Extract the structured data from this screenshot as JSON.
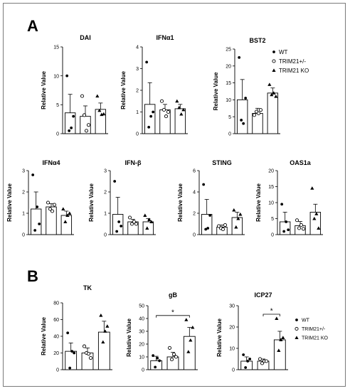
{
  "panels": [
    {
      "label": "A"
    },
    {
      "label": "B"
    }
  ],
  "legend": {
    "wt": "WT",
    "het": "TRIM21+/-",
    "ko": "TRIM21 KO"
  },
  "chart_data": [
    {
      "type": "bar",
      "panel": "A",
      "title": "DAI",
      "ylabel": "Relative Value",
      "ylim": [
        0,
        15
      ],
      "yticks": [
        "0",
        "5",
        "10",
        "15"
      ],
      "categories": [
        "WT",
        "TRIM21+/-",
        "TRIM21 KO"
      ],
      "values": [
        3.6,
        3.0,
        4.2
      ],
      "errors": [
        3.2,
        1.8,
        1.1
      ],
      "points": [
        [
          10,
          0.5,
          1.0,
          3.0
        ],
        [
          6.5,
          3.2,
          0.5,
          1.5
        ],
        [
          6.5,
          4.0,
          3.3,
          3.4
        ]
      ]
    },
    {
      "type": "bar",
      "panel": "A",
      "title": "IFNα1",
      "ylabel": "Relative Value",
      "ylim": [
        0,
        4
      ],
      "yticks": [
        "0",
        "1",
        "2",
        "3",
        "4"
      ],
      "categories": [
        "WT",
        "TRIM21+/-",
        "TRIM21 KO"
      ],
      "values": [
        1.35,
        1.1,
        1.15
      ],
      "errors": [
        1.0,
        0.25,
        0.2
      ],
      "points": [
        [
          3.3,
          0.3,
          0.8,
          1.0
        ],
        [
          1.5,
          1.1,
          0.8,
          1.0
        ],
        [
          1.5,
          1.2,
          0.9,
          1.1
        ]
      ]
    },
    {
      "type": "bar",
      "panel": "A",
      "title": "BST2",
      "ylabel": "Relative Value",
      "ylim": [
        0,
        25
      ],
      "yticks": [
        "0",
        "5",
        "10",
        "15",
        "20",
        "25"
      ],
      "categories": [
        "WT",
        "TRIM21+/-",
        "TRIM21 KO"
      ],
      "values": [
        10,
        6,
        12
      ],
      "errors": [
        6,
        1.5,
        1.5
      ],
      "points": [
        [
          22.5,
          4.0,
          3.0,
          10.5
        ],
        [
          5.5,
          6.5,
          6.0,
          7.0
        ],
        [
          14.5,
          11.5,
          12.0,
          11.0
        ]
      ]
    },
    {
      "type": "bar",
      "panel": "A",
      "title": "IFNα4",
      "ylabel": "Relative Value",
      "ylim": [
        0,
        3
      ],
      "yticks": [
        "0",
        "1",
        "2",
        "3"
      ],
      "categories": [
        "WT",
        "TRIM21+/-",
        "TRIM21 KO"
      ],
      "values": [
        1.2,
        1.3,
        0.9
      ],
      "errors": [
        0.8,
        0.15,
        0.2
      ],
      "points": [
        [
          2.8,
          0.2,
          1.3,
          0.5
        ],
        [
          1.5,
          1.2,
          1.1,
          1.4
        ],
        [
          1.2,
          0.6,
          0.9,
          1.0
        ]
      ]
    },
    {
      "type": "bar",
      "panel": "A",
      "title": "IFN-β",
      "ylabel": "Relative Value",
      "ylim": [
        0,
        3
      ],
      "yticks": [
        "0",
        "1",
        "2",
        "3"
      ],
      "categories": [
        "WT",
        "TRIM21+/-",
        "TRIM21 KO"
      ],
      "values": [
        0.95,
        0.6,
        0.6
      ],
      "errors": [
        0.8,
        0.12,
        0.15
      ],
      "points": [
        [
          2.5,
          0.15,
          0.6,
          0.4
        ],
        [
          0.8,
          0.5,
          0.6,
          0.5
        ],
        [
          0.9,
          0.3,
          0.7,
          0.6
        ]
      ]
    },
    {
      "type": "bar",
      "panel": "A",
      "title": "STING",
      "ylabel": "Relative Value",
      "ylim": [
        0,
        6
      ],
      "yticks": [
        "0",
        "2",
        "4",
        "6"
      ],
      "categories": [
        "WT",
        "TRIM21+/-",
        "TRIM21 KO"
      ],
      "values": [
        1.9,
        0.7,
        1.6
      ],
      "errors": [
        1.4,
        0.2,
        0.5
      ],
      "points": [
        [
          4.7,
          0.5,
          0.6,
          1.8
        ],
        [
          0.8,
          0.6,
          0.5,
          0.9
        ],
        [
          2.3,
          0.7,
          1.5,
          1.9
        ]
      ]
    },
    {
      "type": "bar",
      "panel": "A",
      "title": "OAS1a",
      "ylabel": "Relative Value",
      "ylim": [
        0,
        20
      ],
      "yticks": [
        "0",
        "5",
        "10",
        "15",
        "20"
      ],
      "categories": [
        "WT",
        "TRIM21+/-",
        "TRIM21 KO"
      ],
      "values": [
        4.0,
        2.8,
        7.0
      ],
      "errors": [
        3.0,
        1.3,
        2.5
      ],
      "points": [
        [
          9.5,
          1.0,
          4.0,
          1.5
        ],
        [
          4.5,
          2.0,
          3.0,
          1.8
        ],
        [
          14.5,
          5.0,
          6.5,
          2.0
        ]
      ]
    },
    {
      "type": "bar",
      "panel": "B",
      "title": "TK",
      "ylabel": "Relative Value",
      "ylim": [
        0,
        80
      ],
      "yticks": [
        "0",
        "20",
        "40",
        "60",
        "80"
      ],
      "categories": [
        "WT",
        "TRIM21+/-",
        "TRIM21 KO"
      ],
      "values": [
        22,
        20,
        45
      ],
      "errors": [
        10,
        6,
        13
      ],
      "points": [
        [
          44,
          2,
          22,
          20
        ],
        [
          28,
          20,
          19,
          14
        ],
        [
          65,
          33,
          46,
          52
        ]
      ]
    },
    {
      "type": "bar",
      "panel": "B",
      "title": "gB",
      "ylabel": "Relative Value",
      "ylim": [
        0,
        50
      ],
      "yticks": [
        "0",
        "10",
        "20",
        "30",
        "40",
        "50"
      ],
      "categories": [
        "WT",
        "TRIM21+/-",
        "TRIM21 KO"
      ],
      "values": [
        7,
        10,
        26
      ],
      "errors": [
        3.5,
        3.5,
        7
      ],
      "points": [
        [
          11,
          2,
          9,
          7
        ],
        [
          17,
          8,
          12,
          10
        ],
        [
          39,
          14,
          23,
          33
        ]
      ],
      "significance": {
        "from": 0,
        "to": 2,
        "label": "*"
      }
    },
    {
      "type": "bar",
      "panel": "B",
      "title": "ICP27",
      "ylabel": "Relative Value",
      "ylim": [
        0,
        30
      ],
      "yticks": [
        "0",
        "10",
        "20",
        "30"
      ],
      "categories": [
        "WT",
        "TRIM21+/-",
        "TRIM21 KO"
      ],
      "values": [
        4,
        4,
        14
      ],
      "errors": [
        2,
        1,
        4
      ],
      "points": [
        [
          7,
          1,
          4,
          5
        ],
        [
          5,
          3,
          4,
          4
        ],
        [
          24,
          9,
          14,
          15
        ]
      ],
      "significance": {
        "from": 1,
        "to": 2,
        "label": "*"
      }
    }
  ]
}
